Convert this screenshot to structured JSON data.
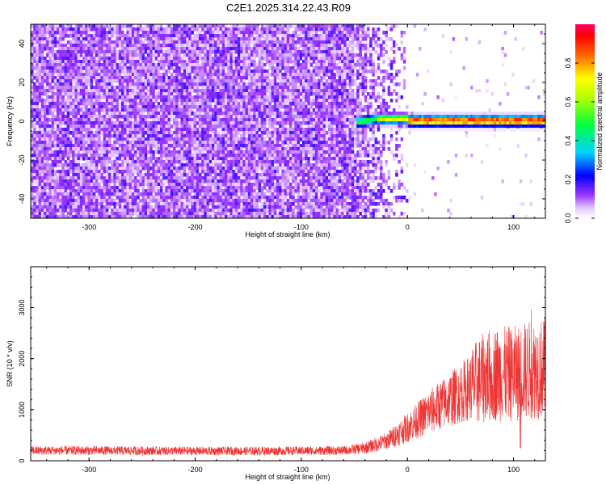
{
  "title": "C2E1.2025.314.22.43.R09",
  "colors": {
    "snr_line": "#ee3333",
    "spectrogram_noise": "#6a00ee",
    "frame": "#000000"
  },
  "chart_data": [
    {
      "type": "heatmap",
      "xlabel": "Height of straight line (km)",
      "ylabel": "Frequency (Hz)",
      "xlim": [
        -355,
        130
      ],
      "ylim": [
        -50,
        50
      ],
      "xticks": [
        -300,
        -200,
        -100,
        0,
        100
      ],
      "yticks": [
        -40,
        -20,
        0,
        20,
        40
      ],
      "colorbar": {
        "label": "Normalized spectral amplitude",
        "range": [
          0,
          1
        ],
        "ticks": [
          0.0,
          0.2,
          0.4,
          0.6,
          0.8
        ],
        "colormap": [
          "#ffffff",
          "#d9b3ff",
          "#7a1cff",
          "#0000ff",
          "#00e5ff",
          "#00ff33",
          "#ffff00",
          "#ff3300",
          "#ff0066"
        ]
      },
      "regions": [
        {
          "description": "noise",
          "x_range": [
            -355,
            -30
          ],
          "freq_range": [
            -50,
            50
          ],
          "amplitude": 0.1
        },
        {
          "description": "signal band",
          "x_range": [
            -50,
            130
          ],
          "freq_center": 1,
          "freq_halfwidth": 3,
          "amplitude_peak": 0.95
        }
      ]
    },
    {
      "type": "line",
      "xlabel": "Height of straight line (km)",
      "ylabel": "SNR (10 * v/v)",
      "xlim": [
        -355,
        130
      ],
      "ylim": [
        0,
        3800
      ],
      "xticks": [
        -300,
        -200,
        -100,
        0,
        100
      ],
      "yticks": [
        0,
        1000,
        2000,
        3000
      ],
      "series": [
        {
          "x": [
            -350,
            -300,
            -250,
            -200,
            -150,
            -100,
            -60,
            -40,
            -20,
            0,
            20,
            40,
            60,
            70,
            80,
            90,
            100,
            110,
            120,
            130
          ],
          "y": [
            200,
            200,
            195,
            190,
            190,
            195,
            200,
            250,
            380,
            650,
            950,
            1200,
            1450,
            1600,
            1700,
            1700,
            1700,
            1750,
            1800,
            1800
          ]
        }
      ]
    }
  ]
}
